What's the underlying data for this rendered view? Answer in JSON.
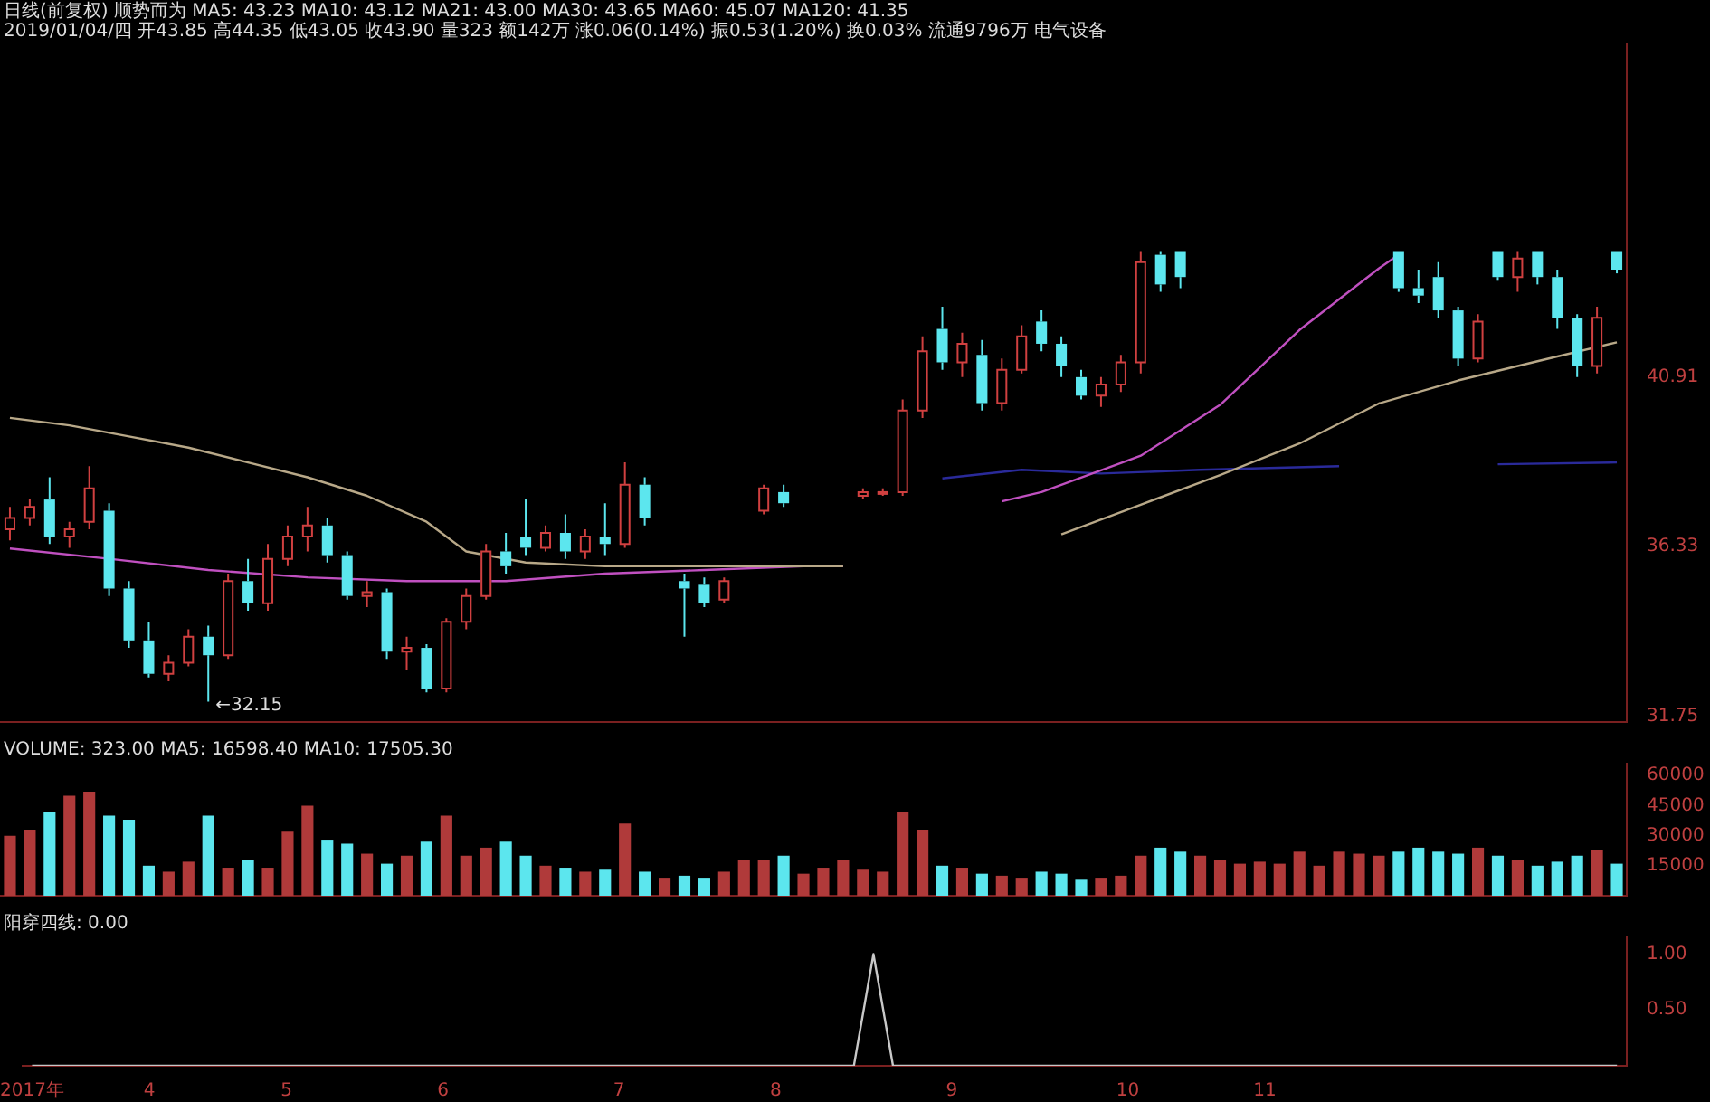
{
  "chart_data": [
    {
      "type": "candlestick",
      "title": "日线(前复权) 顺势而为",
      "subtitle": "2019/01/04/四 开43.85 高44.35 低43.05 收43.90 量323 额142万 涨0.06(0.14%) 振0.53(1.20%) 换0.03% 流通9796万 电气设备",
      "annotations": [
        "MA5: 43.23  MA10: 43.12  MA21: 43.00  MA30: 43.65  MA60: 45.07  MA120: 41.35",
        "←32.15"
      ],
      "categories": [
        null,
        null,
        null,
        null,
        null,
        null,
        null,
        null,
        null,
        null,
        null,
        null,
        null,
        null,
        null,
        null,
        null,
        null,
        null,
        null,
        null,
        null,
        null,
        null,
        null,
        null,
        null,
        null,
        null,
        null,
        null,
        null,
        null,
        null,
        null,
        null,
        null,
        null,
        null,
        null,
        null,
        null,
        null,
        null,
        null,
        null,
        null,
        null,
        null,
        null,
        null,
        null,
        null,
        null,
        null,
        null,
        null,
        null,
        null,
        null,
        null,
        null,
        null,
        null,
        null,
        null,
        null,
        null,
        null,
        null,
        null,
        null,
        null,
        null,
        null,
        null,
        null,
        null,
        null,
        null,
        null,
        null
      ],
      "ohlc": [
        [
          36.8,
          37.4,
          36.5,
          37.1
        ],
        [
          37.1,
          37.6,
          36.9,
          37.4
        ],
        [
          37.6,
          38.2,
          36.4,
          36.6
        ],
        [
          36.6,
          37.0,
          36.3,
          36.8
        ],
        [
          37.0,
          38.5,
          36.8,
          37.9
        ],
        [
          37.3,
          37.5,
          35.0,
          35.2
        ],
        [
          35.2,
          35.4,
          33.6,
          33.8
        ],
        [
          33.8,
          34.3,
          32.8,
          32.9
        ],
        [
          32.9,
          33.4,
          32.7,
          33.2
        ],
        [
          33.2,
          34.1,
          33.1,
          33.9
        ],
        [
          33.9,
          34.2,
          32.15,
          33.4
        ],
        [
          33.4,
          35.6,
          33.3,
          35.4
        ],
        [
          35.4,
          36.0,
          34.6,
          34.8
        ],
        [
          34.8,
          36.4,
          34.6,
          36.0
        ],
        [
          36.0,
          36.9,
          35.8,
          36.6
        ],
        [
          36.6,
          37.4,
          36.2,
          36.9
        ],
        [
          36.9,
          37.1,
          35.9,
          36.1
        ],
        [
          36.1,
          36.2,
          34.9,
          35.0
        ],
        [
          35.0,
          35.4,
          34.7,
          35.1
        ],
        [
          35.1,
          35.2,
          33.3,
          33.5
        ],
        [
          33.5,
          33.9,
          33.0,
          33.6
        ],
        [
          33.6,
          33.7,
          32.4,
          32.5
        ],
        [
          32.5,
          34.4,
          32.4,
          34.3
        ],
        [
          34.3,
          35.2,
          34.1,
          35.0
        ],
        [
          35.0,
          36.4,
          34.9,
          36.2
        ],
        [
          36.2,
          36.7,
          35.6,
          35.8
        ],
        [
          36.6,
          37.6,
          36.1,
          36.3
        ],
        [
          36.3,
          36.9,
          36.2,
          36.7
        ],
        [
          36.7,
          37.2,
          36.0,
          36.2
        ],
        [
          36.2,
          36.8,
          36.0,
          36.6
        ],
        [
          36.6,
          37.5,
          36.1,
          36.4
        ],
        [
          36.4,
          38.6,
          36.3,
          38.0
        ],
        [
          38.0,
          38.2,
          36.9,
          37.1
        ],
        null,
        [
          35.4,
          35.6,
          33.9,
          35.2
        ],
        [
          35.3,
          35.5,
          34.7,
          34.8
        ],
        [
          34.9,
          35.5,
          34.8,
          35.4
        ],
        null,
        [
          37.3,
          38.0,
          37.2,
          37.9
        ],
        [
          37.8,
          38.0,
          37.4,
          37.5
        ],
        null,
        null,
        null,
        [
          37.7,
          37.9,
          37.6,
          37.8
        ],
        [
          37.8,
          37.9,
          37.7,
          37.8
        ],
        [
          37.8,
          40.3,
          37.7,
          40.0
        ],
        [
          40.0,
          42.0,
          39.8,
          41.6
        ],
        [
          42.2,
          42.8,
          41.1,
          41.3
        ],
        [
          41.3,
          42.1,
          40.9,
          41.8
        ],
        [
          41.5,
          41.9,
          40.0,
          40.2
        ],
        [
          40.2,
          41.4,
          40.0,
          41.1
        ],
        [
          41.1,
          42.3,
          41.0,
          42.0
        ],
        [
          42.4,
          42.7,
          41.6,
          41.8
        ],
        [
          41.8,
          42.0,
          40.9,
          41.2
        ],
        [
          40.9,
          41.1,
          40.3,
          40.4
        ],
        [
          40.4,
          40.9,
          40.1,
          40.7
        ],
        [
          40.7,
          41.5,
          40.5,
          41.3
        ],
        [
          41.3,
          44.3,
          41.0,
          44.0
        ],
        [
          44.2,
          44.3,
          43.2,
          43.4
        ],
        [
          44.3,
          44.3,
          43.3,
          43.6
        ],
        null,
        null,
        null,
        null,
        null,
        null,
        null,
        null,
        null,
        null,
        [
          44.3,
          44.3,
          43.2,
          43.3
        ],
        [
          43.3,
          43.8,
          42.9,
          43.1
        ],
        [
          43.6,
          44.0,
          42.5,
          42.7
        ],
        [
          42.7,
          42.8,
          41.2,
          41.4
        ],
        [
          41.4,
          42.6,
          41.3,
          42.4
        ],
        [
          44.3,
          44.3,
          43.5,
          43.6
        ],
        [
          43.6,
          44.3,
          43.2,
          44.1
        ],
        [
          44.3,
          44.3,
          43.4,
          43.6
        ],
        [
          43.6,
          43.8,
          42.2,
          42.5
        ],
        [
          42.5,
          42.6,
          40.9,
          41.2
        ],
        [
          41.2,
          42.8,
          41.0,
          42.5
        ],
        [
          44.3,
          44.3,
          43.7,
          43.8
        ]
      ],
      "series": [
        {
          "type": "line",
          "color": "#b8a888",
          "values": [
            39.8,
            null,
            null,
            39.6,
            null,
            null,
            39.3,
            null,
            null,
            39.0,
            null,
            null,
            38.6,
            null,
            null,
            38.2,
            null,
            null,
            37.7,
            null,
            null,
            37.0,
            null,
            36.2,
            null,
            null,
            35.9,
            null,
            null,
            null,
            35.8,
            null,
            null,
            null,
            35.8,
            null,
            null,
            null,
            35.8,
            null,
            null,
            null,
            35.8,
            null,
            null,
            null,
            null,
            null,
            null,
            null,
            null,
            null,
            null,
            36.66,
            null,
            null,
            null,
            37.46,
            null,
            null,
            null,
            38.26,
            null,
            null,
            null,
            39.11,
            null,
            null,
            null,
            40.19,
            null,
            null,
            null,
            40.81,
            null,
            null,
            null,
            41.33,
            null,
            null,
            null,
            41.84
          ]
        },
        {
          "type": "line",
          "color": "#c050c0",
          "values": [
            36.28,
            null,
            null,
            null,
            null,
            36.0,
            null,
            null,
            null,
            null,
            35.7,
            null,
            null,
            null,
            null,
            35.5,
            null,
            null,
            null,
            null,
            35.4,
            null,
            null,
            null,
            null,
            35.4,
            null,
            null,
            null,
            null,
            35.6,
            null,
            null,
            null,
            null,
            35.7,
            null,
            null,
            null,
            null,
            35.8,
            null,
            35.8,
            null,
            null,
            null,
            null,
            null,
            null,
            null,
            37.55,
            null,
            37.8,
            null,
            null,
            null,
            null,
            38.78,
            null,
            null,
            null,
            40.15,
            null,
            null,
            null,
            42.17,
            null,
            null,
            null,
            43.83,
            44.2,
            null,
            null,
            null,
            null,
            null,
            null,
            null,
            null,
            null,
            null,
            null
          ]
        },
        {
          "type": "line",
          "color": "#2a2a9a",
          "values": [
            null,
            null,
            null,
            null,
            null,
            null,
            null,
            null,
            null,
            null,
            null,
            null,
            null,
            null,
            null,
            null,
            null,
            null,
            null,
            null,
            null,
            null,
            null,
            null,
            null,
            null,
            null,
            null,
            null,
            null,
            null,
            null,
            null,
            null,
            null,
            null,
            null,
            null,
            null,
            null,
            null,
            null,
            null,
            null,
            null,
            null,
            null,
            38.17,
            null,
            null,
            null,
            38.4,
            null,
            null,
            null,
            38.3,
            null,
            null,
            null,
            null,
            38.4,
            null,
            null,
            null,
            null,
            null,
            null,
            38.5,
            null,
            null,
            null,
            null,
            null,
            null,
            null,
            38.55,
            null,
            null,
            null,
            null,
            null,
            38.6
          ]
        }
      ],
      "ylim": [
        31.6,
        49.9
      ],
      "yticks": [
        31.75,
        36.33,
        40.91
      ],
      "tick_labels": "y"
    },
    {
      "type": "bar",
      "title": "VOLUME: 323.00  MA5: 16598.40  MA10: 17505.30",
      "categories": [
        null,
        null,
        null,
        null,
        null,
        null,
        null,
        null,
        null,
        null,
        null,
        null,
        null,
        null,
        null,
        null,
        null,
        null,
        null,
        null,
        null,
        null,
        null,
        null,
        null,
        null,
        null,
        null,
        null,
        null,
        null,
        null,
        null,
        null,
        null,
        null,
        null,
        null,
        null,
        null,
        null,
        null,
        null,
        null,
        null,
        null,
        null,
        null,
        null,
        null,
        null,
        null,
        null,
        null,
        null,
        null,
        null,
        null,
        null,
        null,
        null,
        null,
        null,
        null,
        null,
        null,
        null,
        null,
        null,
        null,
        null,
        null,
        null,
        null,
        null,
        null,
        null,
        null,
        null,
        null,
        null,
        null
      ],
      "values": [
        30000,
        33000,
        42000,
        50000,
        52000,
        40000,
        38000,
        15000,
        12000,
        17000,
        40000,
        14000,
        18000,
        14000,
        32000,
        45000,
        28000,
        26000,
        21000,
        16000,
        20000,
        27000,
        40000,
        20000,
        24000,
        27000,
        20000,
        15000,
        14000,
        12000,
        13000,
        36000,
        12000,
        9000,
        10000,
        9000,
        12000,
        18000,
        18000,
        20000,
        11000,
        14000,
        18000,
        13000,
        12000,
        42000,
        33000,
        15000,
        14000,
        11000,
        10000,
        9000,
        12000,
        11000,
        8000,
        9000,
        10000,
        20000,
        24000,
        22000,
        20000,
        18000,
        16000,
        17000,
        16000,
        22000,
        15000,
        22000,
        21000,
        20000,
        22000,
        24000,
        22000,
        21000,
        24000,
        20000,
        18000,
        15000,
        17000,
        20000,
        23000,
        16000
      ],
      "colors": [
        "#b03a3a",
        "#b03a3a",
        "#5ce6ee",
        "#b03a3a",
        "#b03a3a",
        "#5ce6ee",
        "#5ce6ee",
        "#5ce6ee",
        "#b03a3a",
        "#b03a3a",
        "#5ce6ee",
        "#b03a3a",
        "#5ce6ee",
        "#b03a3a",
        "#b03a3a",
        "#b03a3a",
        "#5ce6ee",
        "#5ce6ee",
        "#b03a3a",
        "#5ce6ee",
        "#b03a3a",
        "#5ce6ee",
        "#b03a3a",
        "#b03a3a",
        "#b03a3a",
        "#5ce6ee",
        "#5ce6ee",
        "#b03a3a",
        "#5ce6ee",
        "#b03a3a",
        "#5ce6ee",
        "#b03a3a",
        "#5ce6ee",
        "#b03a3a",
        "#5ce6ee",
        "#5ce6ee",
        "#b03a3a",
        "#b03a3a",
        "#b03a3a",
        "#5ce6ee",
        "#b03a3a",
        "#b03a3a",
        "#b03a3a",
        "#b03a3a",
        "#b03a3a",
        "#b03a3a",
        "#b03a3a",
        "#5ce6ee",
        "#b03a3a",
        "#5ce6ee",
        "#b03a3a",
        "#b03a3a",
        "#5ce6ee",
        "#5ce6ee",
        "#5ce6ee",
        "#b03a3a",
        "#b03a3a",
        "#b03a3a",
        "#5ce6ee",
        "#5ce6ee",
        "#b03a3a",
        "#b03a3a",
        "#b03a3a",
        "#b03a3a",
        "#b03a3a",
        "#b03a3a",
        "#b03a3a",
        "#b03a3a",
        "#b03a3a",
        "#b03a3a",
        "#5ce6ee",
        "#5ce6ee",
        "#5ce6ee",
        "#5ce6ee",
        "#b03a3a",
        "#5ce6ee",
        "#b03a3a",
        "#5ce6ee",
        "#5ce6ee",
        "#5ce6ee",
        "#b03a3a",
        "#5ce6ee"
      ],
      "ylim": [
        0,
        66000
      ],
      "yticks": [
        15000,
        30000,
        45000,
        60000
      ],
      "tick_labels": "y"
    },
    {
      "type": "line",
      "title": "阳穿四线: 0.00",
      "color": "#c8c8c8",
      "marker": "none",
      "categories": [
        "2017年",
        null,
        null,
        null,
        null,
        null,
        "4",
        null,
        null,
        null,
        null,
        null,
        null,
        "5",
        null,
        null,
        null,
        null,
        null,
        null,
        null,
        "6",
        null,
        null,
        null,
        null,
        null,
        null,
        null,
        null,
        "7",
        null,
        null,
        null,
        null,
        null,
        null,
        null,
        "8",
        null,
        null,
        null,
        null,
        null,
        null,
        null,
        null,
        "9",
        null,
        null,
        null,
        null,
        null,
        null,
        null,
        null,
        "10",
        null,
        null,
        null,
        null,
        null,
        null,
        "11",
        null,
        null,
        null,
        null,
        null,
        null,
        null,
        null,
        null,
        null,
        null,
        null,
        null,
        null,
        null,
        null,
        null,
        null
      ],
      "values": [
        0,
        0,
        0,
        0,
        0,
        0,
        0,
        0,
        0,
        0,
        0,
        0,
        0,
        0,
        0,
        0,
        0,
        0,
        0,
        0,
        0,
        0,
        0,
        0,
        0,
        0,
        0,
        0,
        0,
        0,
        0,
        0,
        0,
        0,
        0,
        0,
        0,
        0,
        0,
        0,
        0,
        0,
        0,
        1,
        0,
        0,
        0,
        0,
        0,
        0,
        0,
        0,
        0,
        0,
        0,
        0,
        0,
        0,
        0,
        0,
        0,
        0,
        0,
        0,
        0,
        0,
        0,
        0,
        0,
        0,
        0,
        0,
        0,
        0,
        0,
        0,
        0,
        0,
        0,
        0,
        0,
        0
      ],
      "ylim": [
        0,
        1.15
      ],
      "yticks": [
        {
          "value": 0.5,
          "label": "0.50"
        },
        {
          "value": 1,
          "label": "1.00"
        }
      ]
    }
  ]
}
